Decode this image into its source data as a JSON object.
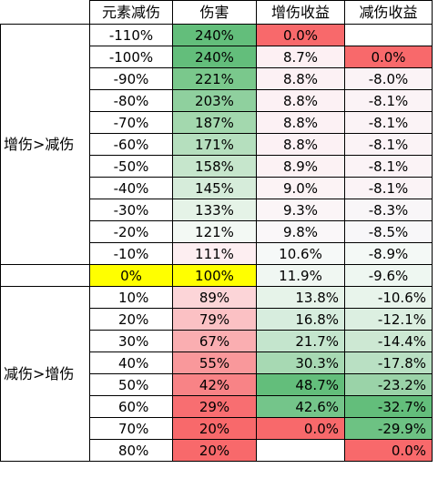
{
  "headers": [
    "",
    "元素减伤",
    "伤害",
    "增伤收益",
    "减伤收益"
  ],
  "groups": {
    "top": "增伤>减伤",
    "bottom": "减伤>增伤"
  },
  "colors": {
    "yellow": "#ffff00",
    "green_strong": "#63be7b",
    "red_strong": "#f8696b",
    "white": "#ffffff"
  },
  "rows": [
    {
      "res": "-110%",
      "dmg": "240%",
      "inc": "0.0%",
      "red": "",
      "dmg_color": "#63be7b",
      "inc_color": "#f8696b",
      "red_color": "#ffffff"
    },
    {
      "res": "-100%",
      "dmg": "240%",
      "inc": "8.7%",
      "red": "0.0%",
      "dmg_color": "#63be7b",
      "inc_color": "#fdf0f3",
      "red_color": "#f8696b"
    },
    {
      "res": "-90%",
      "dmg": "221%",
      "inc": "8.8%",
      "red": "-8.0%",
      "dmg_color": "#7ac88c",
      "inc_color": "#fcf1f4",
      "red_color": "#fbf3f6"
    },
    {
      "res": "-80%",
      "dmg": "203%",
      "inc": "8.8%",
      "red": "-8.1%",
      "dmg_color": "#8fd09e",
      "inc_color": "#fcf1f4",
      "red_color": "#fbf3f6"
    },
    {
      "res": "-70%",
      "dmg": "187%",
      "inc": "8.8%",
      "red": "-8.1%",
      "dmg_color": "#a3d8ae",
      "inc_color": "#fcf1f4",
      "red_color": "#fbf3f6"
    },
    {
      "res": "-60%",
      "dmg": "171%",
      "inc": "8.8%",
      "red": "-8.1%",
      "dmg_color": "#b5dfbe",
      "inc_color": "#fcf1f4",
      "red_color": "#fbf3f6"
    },
    {
      "res": "-50%",
      "dmg": "158%",
      "inc": "8.9%",
      "red": "-8.1%",
      "dmg_color": "#c6e6cc",
      "inc_color": "#fcf2f4",
      "red_color": "#fbf3f6"
    },
    {
      "res": "-40%",
      "dmg": "145%",
      "inc": "9.0%",
      "red": "-8.1%",
      "dmg_color": "#d6ecda",
      "inc_color": "#fcf3f5",
      "red_color": "#fbf3f6"
    },
    {
      "res": "-30%",
      "dmg": "133%",
      "inc": "9.3%",
      "red": "-8.3%",
      "dmg_color": "#e5f3e7",
      "inc_color": "#fbf5f7",
      "red_color": "#f9f6f8"
    },
    {
      "res": "-20%",
      "dmg": "121%",
      "inc": "9.8%",
      "red": "-8.5%",
      "dmg_color": "#f3f9f4",
      "inc_color": "#faf7f9",
      "red_color": "#f8f7f9"
    },
    {
      "res": "-10%",
      "dmg": "111%",
      "inc": "10.6%",
      "red": "-8.9%",
      "dmg_color": "#fdeef1",
      "inc_color": "#f6f9f8",
      "red_color": "#f4f9f6"
    },
    {
      "res": "0%",
      "dmg": "100%",
      "inc": "11.9%",
      "red": "-9.6%",
      "dmg_color": "#ffff00",
      "inc_color": "#f0f7f2",
      "red_color": "#eef7f1",
      "res_color": "#ffff00",
      "highlight": true
    },
    {
      "res": "10%",
      "dmg": "89%",
      "inc": "13.8%",
      "red": "-10.6%",
      "dmg_color": "#fcd5d8",
      "inc_color": "#e6f3e9",
      "red_color": "#e8f4eb"
    },
    {
      "res": "20%",
      "dmg": "79%",
      "inc": "16.8%",
      "red": "-12.1%",
      "dmg_color": "#fbc1c4",
      "inc_color": "#d7edde",
      "red_color": "#dcefe1"
    },
    {
      "res": "30%",
      "dmg": "67%",
      "inc": "21.7%",
      "red": "-14.4%",
      "dmg_color": "#faaeb1",
      "inc_color": "#c4e5cd",
      "red_color": "#cde8d3"
    },
    {
      "res": "40%",
      "dmg": "55%",
      "inc": "30.3%",
      "red": "-17.8%",
      "dmg_color": "#f9989b",
      "inc_color": "#a7d9b3",
      "red_color": "#b9e0c3"
    },
    {
      "res": "50%",
      "dmg": "42%",
      "inc": "48.7%",
      "red": "-23.2%",
      "dmg_color": "#f88386",
      "inc_color": "#63be7b",
      "red_color": "#9ad3a8"
    },
    {
      "res": "60%",
      "dmg": "29%",
      "inc": "42.6%",
      "red": "-32.7%",
      "dmg_color": "#f86e71",
      "inc_color": "#74c58a",
      "red_color": "#63be7b"
    },
    {
      "res": "70%",
      "dmg": "20%",
      "inc": "0.0%",
      "red": "-29.9%",
      "dmg_color": "#f8696b",
      "inc_color": "#f8696b",
      "red_color": "#6dc283"
    },
    {
      "res": "80%",
      "dmg": "20%",
      "inc": "",
      "red": "0.0%",
      "dmg_color": "#f8696b",
      "inc_color": "#ffffff",
      "red_color": "#f8696b"
    }
  ]
}
